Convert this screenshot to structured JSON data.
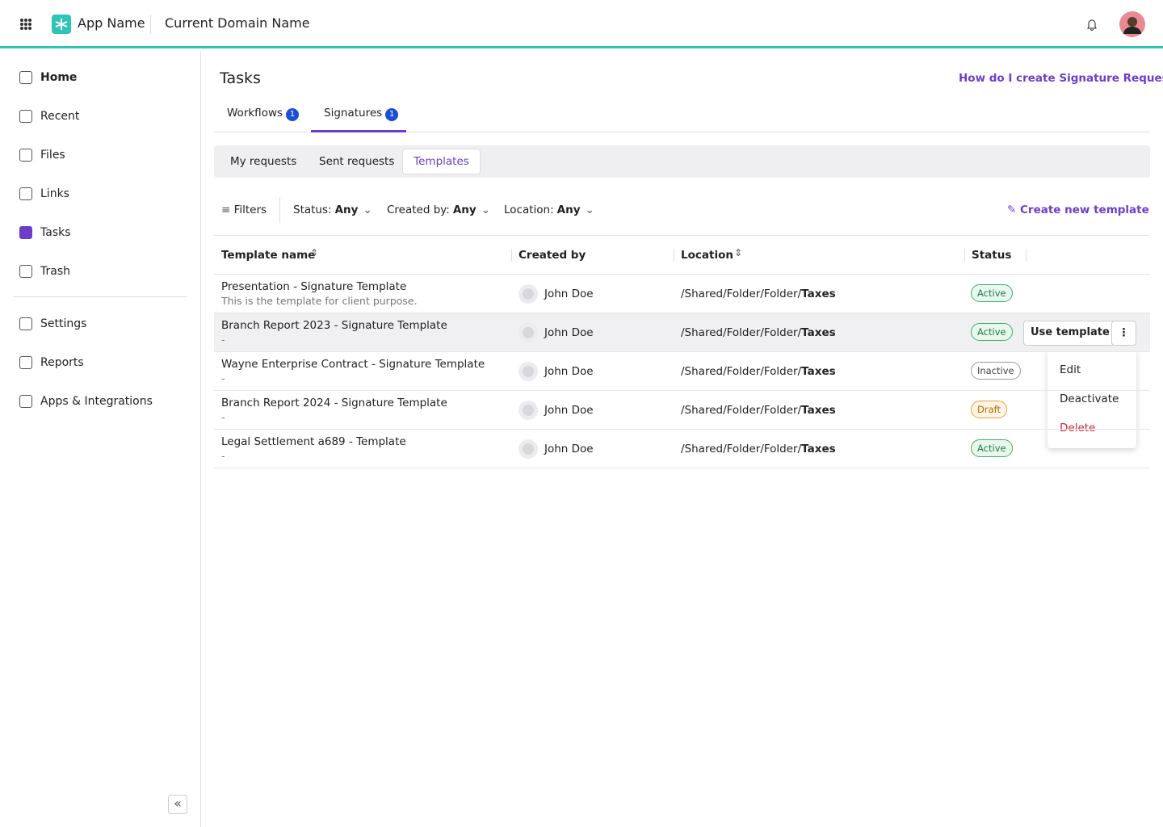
{
  "header": {
    "app_name": "App Name",
    "domain": "Current Domain Name"
  },
  "sidebar": {
    "items": [
      "Home",
      "Recent",
      "Files",
      "Links",
      "Tasks",
      "Trash"
    ],
    "items2": [
      "Settings",
      "Reports",
      "Apps & Integrations"
    ]
  },
  "page": {
    "title": "Tasks",
    "help": "How do I create Signature Request?"
  },
  "tabs": [
    {
      "label": "Workflows",
      "count": 1
    },
    {
      "label": "Signatures",
      "count": 1
    }
  ],
  "subtabs": [
    "My requests",
    "Sent requests",
    "Templates"
  ],
  "filters": {
    "label": "Filters",
    "items": [
      {
        "label": "Status:",
        "value": "Any"
      },
      {
        "label": "Created by:",
        "value": "Any"
      },
      {
        "label": "Location:",
        "value": "Any"
      }
    ],
    "create": "Create new template"
  },
  "table": {
    "columns": [
      "Template name",
      "Created by",
      "Location",
      "Status"
    ],
    "rows": [
      {
        "name": "Presentation - Signature Template",
        "description": "This is the template for client purpose.",
        "creator": "John Doe",
        "path": "/Shared/Folder/Folder/",
        "folder": "Taxes",
        "status": "Active"
      },
      {
        "name": "Branch Report 2023 - Signature Template",
        "description": "-",
        "creator": "John Doe",
        "path": "/Shared/Folder/Folder/",
        "folder": "Taxes",
        "status": "Active"
      },
      {
        "name": "Wayne Enterprise Contract - Signature Template",
        "description": "-",
        "creator": "John Doe",
        "path": "/Shared/Folder/Folder/",
        "folder": "Taxes",
        "status": "Inactive"
      },
      {
        "name": "Branch Report 2024 - Signature Template",
        "description": "-",
        "creator": "John Doe",
        "path": "/Shared/Folder/Folder/",
        "folder": "Taxes",
        "status": "Draft"
      },
      {
        "name": "Legal Settlement a689 - Template",
        "description": "-",
        "creator": "John Doe",
        "path": "/Shared/Folder/Folder/",
        "folder": "Taxes",
        "status": "Active"
      }
    ]
  },
  "actions": {
    "use": "Use template"
  },
  "menu": [
    "Edit",
    "Deactivate",
    "Delete"
  ]
}
